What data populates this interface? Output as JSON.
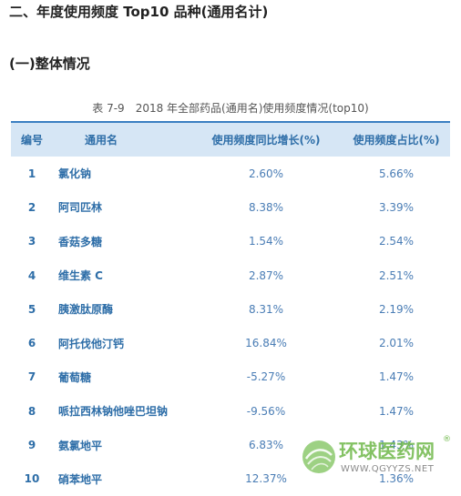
{
  "headings": {
    "main": "二、年度使用频度 Top10 品种(通用名计)",
    "sub": "(一)整体情况"
  },
  "table": {
    "caption": "表 7-9　2018 年全部药品(通用名)使用频度情况(top10)",
    "columns": [
      "编号",
      "通用名",
      "使用频度同比增长(%)",
      "使用频度占比(%)"
    ],
    "rows": [
      {
        "no": "1",
        "name": "氯化钠",
        "growth": "2.60%",
        "share": "5.66%"
      },
      {
        "no": "2",
        "name": "阿司匹林",
        "growth": "8.38%",
        "share": "3.39%"
      },
      {
        "no": "3",
        "name": "香菇多糖",
        "growth": "1.54%",
        "share": "2.54%"
      },
      {
        "no": "4",
        "name": "维生素 C",
        "growth": "2.87%",
        "share": "2.51%"
      },
      {
        "no": "5",
        "name": "胰激肽原酶",
        "growth": "8.31%",
        "share": "2.19%"
      },
      {
        "no": "6",
        "name": "阿托伐他汀钙",
        "growth": "16.84%",
        "share": "2.01%"
      },
      {
        "no": "7",
        "name": "葡萄糖",
        "growth": "-5.27%",
        "share": "1.47%"
      },
      {
        "no": "8",
        "name": "哌拉西林钠他唑巴坦钠",
        "growth": "-9.56%",
        "share": "1.47%"
      },
      {
        "no": "9",
        "name": "氨氯地平",
        "growth": "6.83%",
        "share": "1.43%"
      },
      {
        "no": "10",
        "name": "硝苯地平",
        "growth": "12.37%",
        "share": "1.36%"
      }
    ]
  },
  "watermark": {
    "brand": "环球医药网",
    "url": "WWW.QGYYZS.NET",
    "registered": "®"
  }
}
